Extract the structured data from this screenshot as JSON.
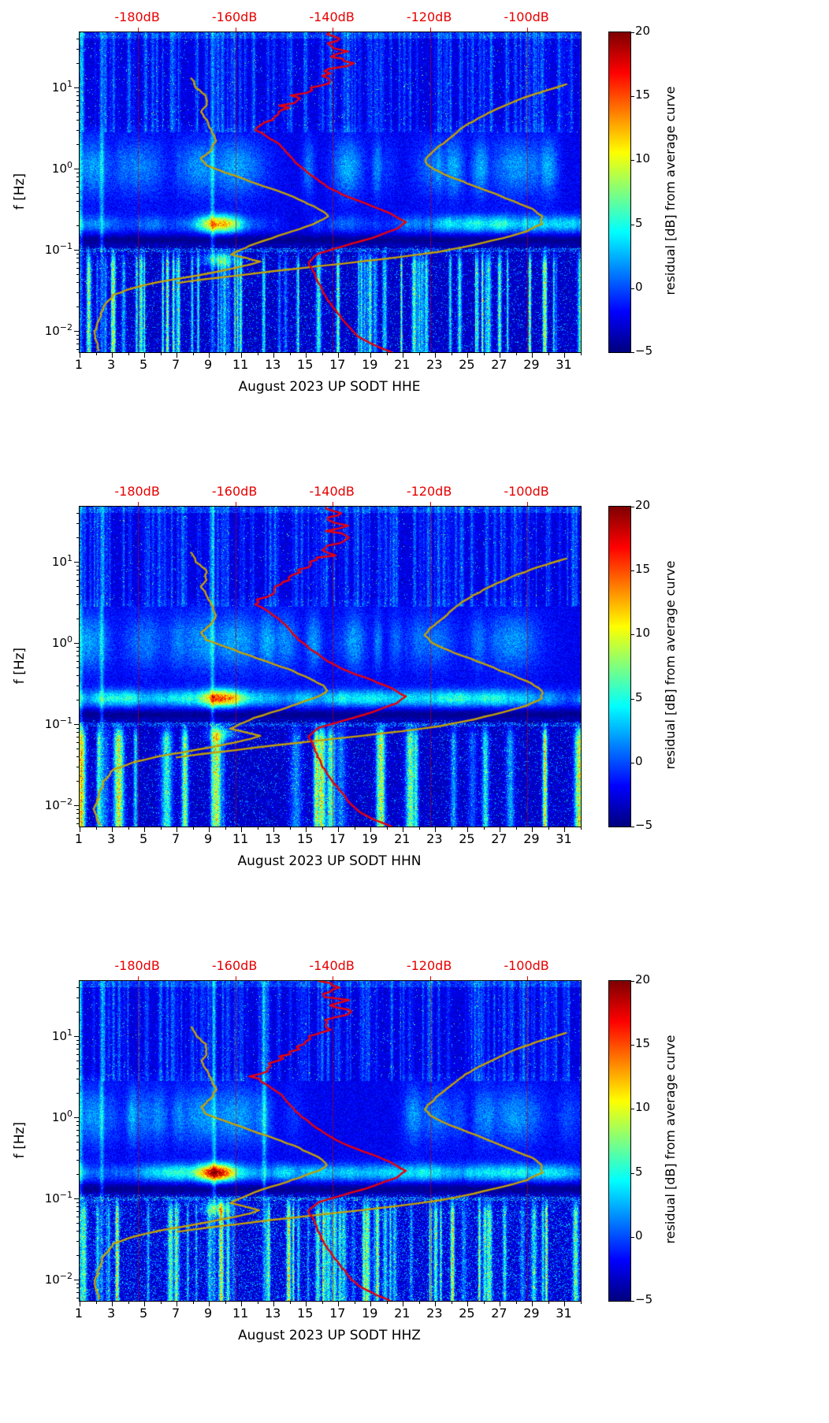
{
  "chart_data": {
    "type": "heatmap",
    "station": "UP SODT",
    "month": "August 2023",
    "channels": [
      "HHE",
      "HHN",
      "HHZ"
    ],
    "description": "Three seismic spectrogram panels (one per channel HHE/HHN/HHZ) of power-spectral-density residuals for station UP SODT in August 2023. Heatmap: x = day of month, y = frequency (log scale), color = residual in dB from the average curve. Overlaid line curves are plotted against the red top axis in absolute dB: red = average PSD curve, olive = bounding/percentile PSD curves.",
    "colors": {
      "curve_red": "#e8000b",
      "curve_olive": "#c3a008",
      "top_axis_red": "#e60000",
      "grid_red": "rgba(190,0,0,0.6)"
    },
    "x_axis": {
      "range_days": [
        1,
        32
      ],
      "ticks": [
        {
          "value": 1,
          "label": "1"
        },
        {
          "value": 3,
          "label": "3"
        },
        {
          "value": 5,
          "label": "5"
        },
        {
          "value": 7,
          "label": "7"
        },
        {
          "value": 9,
          "label": "9"
        },
        {
          "value": 11,
          "label": "11"
        },
        {
          "value": 13,
          "label": "13"
        },
        {
          "value": 15,
          "label": "15"
        },
        {
          "value": 17,
          "label": "17"
        },
        {
          "value": 19,
          "label": "19"
        },
        {
          "value": 21,
          "label": "21"
        },
        {
          "value": 23,
          "label": "23"
        },
        {
          "value": 25,
          "label": "25"
        },
        {
          "value": 27,
          "label": "27"
        },
        {
          "value": 29,
          "label": "29"
        },
        {
          "value": 31,
          "label": "31"
        }
      ]
    },
    "y_axis": {
      "label": "f [Hz]",
      "scale": "log",
      "range_hz": [
        0.0055,
        48
      ],
      "ticks": [
        {
          "exp": 1,
          "label": "1"
        },
        {
          "exp": 0,
          "label": "0"
        },
        {
          "exp": -1,
          "label": "−1"
        },
        {
          "exp": -2,
          "label": "−2"
        }
      ]
    },
    "top_axis": {
      "range_db": [
        -192,
        -89
      ],
      "ticks": [
        {
          "db": -180,
          "label": "-180dB"
        },
        {
          "db": -160,
          "label": "-160dB"
        },
        {
          "db": -140,
          "label": "-140dB"
        },
        {
          "db": -120,
          "label": "-120dB"
        },
        {
          "db": -100,
          "label": "-100dB"
        }
      ]
    },
    "colorbar": {
      "label": "residual [dB] from average curve",
      "min": -5,
      "max": 20,
      "ticks": [
        {
          "value": 20,
          "label": "20"
        },
        {
          "value": 15,
          "label": "15"
        },
        {
          "value": 10,
          "label": "10"
        },
        {
          "value": 5,
          "label": "5"
        },
        {
          "value": 0,
          "label": "0"
        },
        {
          "value": -5,
          "label": "−5"
        }
      ]
    },
    "curves": {
      "red_psd_f_db": [
        [
          48,
          -141
        ],
        [
          40,
          -139
        ],
        [
          33,
          -141
        ],
        [
          28,
          -137
        ],
        [
          24,
          -140
        ],
        [
          20,
          -136
        ],
        [
          17,
          -139
        ],
        [
          14,
          -142
        ],
        [
          12,
          -140
        ],
        [
          10,
          -144
        ],
        [
          8,
          -146
        ],
        [
          6,
          -149
        ],
        [
          5,
          -151
        ],
        [
          4,
          -153
        ],
        [
          3.2,
          -156
        ],
        [
          2.6,
          -154
        ],
        [
          2.0,
          -151
        ],
        [
          1.5,
          -149
        ],
        [
          1.1,
          -147
        ],
        [
          0.8,
          -144
        ],
        [
          0.6,
          -141
        ],
        [
          0.45,
          -137
        ],
        [
          0.35,
          -132
        ],
        [
          0.28,
          -128
        ],
        [
          0.22,
          -125
        ],
        [
          0.18,
          -127
        ],
        [
          0.14,
          -132
        ],
        [
          0.11,
          -138
        ],
        [
          0.09,
          -143
        ],
        [
          0.07,
          -145
        ],
        [
          0.055,
          -144
        ],
        [
          0.04,
          -143
        ],
        [
          0.03,
          -142
        ],
        [
          0.02,
          -140
        ],
        [
          0.014,
          -138
        ],
        [
          0.01,
          -136
        ],
        [
          0.008,
          -134
        ],
        [
          0.0065,
          -131
        ],
        [
          0.0055,
          -128
        ]
      ],
      "olive_left_f_db": [
        [
          13,
          -169
        ],
        [
          10,
          -168
        ],
        [
          8,
          -166
        ],
        [
          6,
          -166
        ],
        [
          5,
          -167
        ],
        [
          4,
          -166
        ],
        [
          3,
          -165
        ],
        [
          2.2,
          -164
        ],
        [
          1.7,
          -165
        ],
        [
          1.35,
          -167
        ],
        [
          1.1,
          -166
        ],
        [
          0.9,
          -162
        ],
        [
          0.7,
          -157
        ],
        [
          0.55,
          -152
        ],
        [
          0.45,
          -148
        ],
        [
          0.37,
          -145
        ],
        [
          0.3,
          -142
        ],
        [
          0.26,
          -141
        ],
        [
          0.22,
          -143
        ],
        [
          0.18,
          -147
        ],
        [
          0.15,
          -151
        ],
        [
          0.12,
          -156
        ],
        [
          0.1,
          -159
        ],
        [
          0.088,
          -161
        ],
        [
          0.08,
          -158
        ],
        [
          0.072,
          -155
        ],
        [
          0.066,
          -157
        ],
        [
          0.06,
          -160
        ],
        [
          0.052,
          -165
        ],
        [
          0.045,
          -171
        ],
        [
          0.04,
          -176
        ],
        [
          0.034,
          -181
        ],
        [
          0.028,
          -185
        ],
        [
          0.02,
          -187
        ],
        [
          0.014,
          -188
        ],
        [
          0.009,
          -189
        ],
        [
          0.0058,
          -188
        ]
      ],
      "olive_right_f_db": [
        [
          11,
          -92
        ],
        [
          8.5,
          -98
        ],
        [
          7,
          -102
        ],
        [
          5.5,
          -106
        ],
        [
          4.5,
          -109
        ],
        [
          3.6,
          -112
        ],
        [
          3.0,
          -114
        ],
        [
          2.4,
          -116
        ],
        [
          1.9,
          -118
        ],
        [
          1.5,
          -120
        ],
        [
          1.25,
          -121
        ],
        [
          1.05,
          -120
        ],
        [
          0.85,
          -117
        ],
        [
          0.65,
          -112
        ],
        [
          0.5,
          -107
        ],
        [
          0.4,
          -103
        ],
        [
          0.32,
          -99
        ],
        [
          0.26,
          -97
        ],
        [
          0.21,
          -97
        ],
        [
          0.17,
          -100
        ],
        [
          0.14,
          -105
        ],
        [
          0.115,
          -111
        ],
        [
          0.095,
          -118
        ],
        [
          0.082,
          -126
        ],
        [
          0.072,
          -134
        ],
        [
          0.063,
          -143
        ],
        [
          0.055,
          -152
        ],
        [
          0.048,
          -160
        ],
        [
          0.043,
          -167
        ],
        [
          0.039,
          -172
        ]
      ]
    },
    "panels": [
      {
        "channel": "HHE",
        "xlabel": "August 2023 UP SODT  HHE",
        "features": [
          "secondary microseism band 0.15–0.3 Hz persists all month",
          "strong +15…+20 dB (red) anomaly around 8–11 August in the microseism band",
          "orange hotspot near day 9.5 at 0.06–0.09 Hz",
          "narrow cyan/yellow transient stripes below 0.1 Hz on many days",
          "cyan plumes 0.3–2 Hz early month and around days 22–29",
          "speckled blue/cyan background above 3 Hz with daily stripes"
        ],
        "render": {
          "seed": 17,
          "low_stripes": 70,
          "low_width": 2.2,
          "low_amp": 11,
          "low_base": -0.3,
          "low_speck": 0.1,
          "hi_amp": 5,
          "plume_amp": 4.5,
          "blob_day": 9.6,
          "blob_w": 1.25,
          "blob_amp": 14,
          "spot_amp": 7,
          "tall_amp": 8,
          "tall_days": [
            1.05,
            2.35,
            9.2
          ],
          "fixed_plumes": [
            {
              "day": 1.8,
              "w": 1.2,
              "amp": 5
            },
            {
              "day": 5,
              "w": 1.4,
              "amp": 4
            },
            {
              "day": 8.5,
              "w": 1.6,
              "amp": 5
            },
            {
              "day": 10.6,
              "w": 1.8,
              "amp": 5.5
            },
            {
              "day": 23,
              "w": 1.3,
              "amp": 4
            },
            {
              "day": 28,
              "w": 1.7,
              "amp": 5
            }
          ],
          "band_dips": [
            {
              "day": 14.8,
              "w": 2.2,
              "depth": 2.6
            },
            {
              "day": 20.5,
              "w": 1.6,
              "depth": 2
            }
          ]
        }
      },
      {
        "channel": "HHN",
        "xlabel": "August 2023 UP SODT  HHN",
        "features": [
          "wide solid cyan columns below 0.1 Hz on most days 1–23",
          "strong +15…+20 dB (red) anomaly around 9–11 August in the microseism band",
          "same red/olive reference curves as other channels",
          "cyan plumes 0.3–2 Hz and enhanced cloud near days 27–29"
        ],
        "render": {
          "seed": 42,
          "low_stripes": 26,
          "low_width": 5.0,
          "low_amp": 13,
          "low_base": -0.2,
          "low_speck": 0.08,
          "hi_amp": 5,
          "plume_amp": 4.5,
          "blob_day": 9.8,
          "blob_w": 1.15,
          "blob_amp": 14,
          "spot_amp": 6,
          "tall_amp": 8,
          "tall_days": [
            1.05,
            2.35,
            9.2
          ],
          "fixed_plumes": [
            {
              "day": 1.8,
              "w": 1.2,
              "amp": 5
            },
            {
              "day": 5,
              "w": 1.4,
              "amp": 4
            },
            {
              "day": 8.5,
              "w": 1.6,
              "amp": 5
            },
            {
              "day": 10.6,
              "w": 1.8,
              "amp": 5.5
            },
            {
              "day": 23,
              "w": 1.3,
              "amp": 4
            },
            {
              "day": 27.8,
              "w": 1.7,
              "amp": 5
            }
          ],
          "band_dips": [
            {
              "day": 14.5,
              "w": 2.0,
              "depth": 2.4
            },
            {
              "day": 20.5,
              "w": 1.6,
              "depth": 2
            }
          ]
        }
      },
      {
        "channel": "HHZ",
        "xlabel": "August 2023 UP SODT  HHZ",
        "features": [
          "strongest red anomaly (+18…+20 dB) around 8.5–10.5 August at 0.15–0.3 Hz",
          "dense green/yellow speckle below 0.1 Hz, brightest days 1–12",
          "narrow transient stripes below 0.1 Hz through the month",
          "enhanced cyan cloud near days 27–29 at 1–3 Hz"
        ],
        "render": {
          "seed": 77,
          "low_stripes": 58,
          "low_width": 2.6,
          "low_amp": 12,
          "low_base": 0,
          "low_speck": 0.2,
          "hi_amp": 5,
          "plume_amp": 4.5,
          "blob_day": 9.5,
          "blob_w": 1.1,
          "blob_amp": 16,
          "spot_amp": 7,
          "tall_amp": 8,
          "tall_days": [
            1.05,
            2.35,
            9.3,
            12.4
          ],
          "fixed_plumes": [
            {
              "day": 1.8,
              "w": 1.2,
              "amp": 5
            },
            {
              "day": 5,
              "w": 1.4,
              "amp": 4
            },
            {
              "day": 8.5,
              "w": 1.6,
              "amp": 5
            },
            {
              "day": 10.6,
              "w": 1.8,
              "amp": 5.5
            },
            {
              "day": 23,
              "w": 1.3,
              "amp": 4
            },
            {
              "day": 28,
              "w": 1.7,
              "amp": 5
            }
          ],
          "band_dips": [
            {
              "day": 14.8,
              "w": 2.2,
              "depth": 2.4
            },
            {
              "day": 20.5,
              "w": 1.6,
              "depth": 2
            }
          ]
        }
      }
    ]
  }
}
